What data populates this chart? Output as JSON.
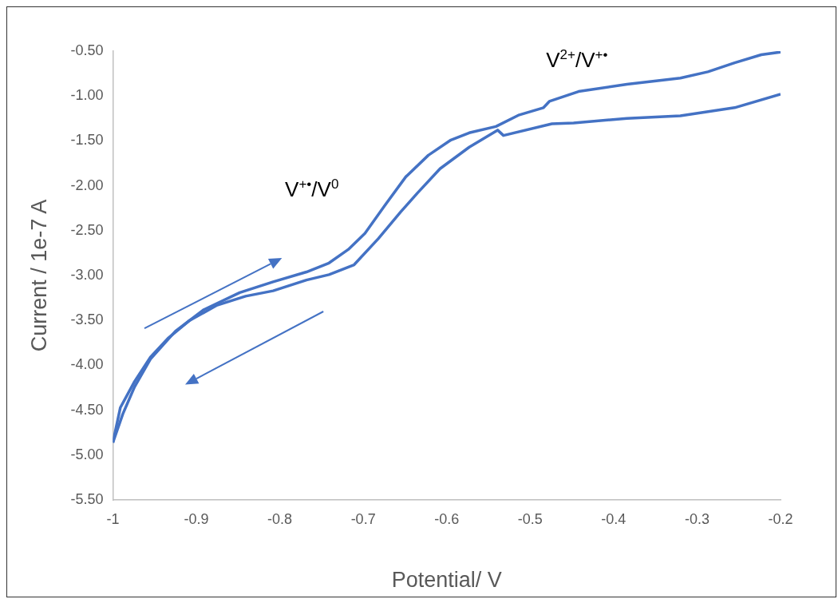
{
  "chart_data": {
    "type": "line",
    "xlabel": "Potential/ V",
    "ylabel": "Current / 1e-7 A",
    "series": [
      {
        "color": "#4472c4",
        "x": [
          -1.0,
          -0.988,
          -0.974,
          -0.955,
          -0.925,
          -0.891,
          -0.848,
          -0.808,
          -0.768,
          -0.741,
          -0.718,
          -0.698,
          -0.675,
          -0.649,
          -0.622,
          -0.595,
          -0.573,
          -0.541,
          -0.513,
          -0.484,
          -0.477,
          -0.442,
          -0.384,
          -0.32,
          -0.287,
          -0.255,
          -0.223,
          -0.2
        ],
        "values": [
          -4.86,
          -4.54,
          -4.24,
          -3.93,
          -3.62,
          -3.38,
          -3.19,
          -3.07,
          -2.96,
          -2.86,
          -2.71,
          -2.53,
          -2.23,
          -1.9,
          -1.66,
          -1.49,
          -1.41,
          -1.34,
          -1.21,
          -1.13,
          -1.06,
          -0.95,
          -0.87,
          -0.8,
          -0.73,
          -0.63,
          -0.54,
          -0.51
        ]
      },
      {
        "color": "#4472c4",
        "x": [
          -0.2,
          -0.255,
          -0.32,
          -0.384,
          -0.448,
          -0.474,
          -0.532,
          -0.539,
          -0.573,
          -0.608,
          -0.635,
          -0.655,
          -0.682,
          -0.711,
          -0.741,
          -0.768,
          -0.808,
          -0.841,
          -0.875,
          -0.908,
          -0.934,
          -0.955,
          -0.974,
          -0.991,
          -1.0
        ],
        "values": [
          -0.98,
          -1.13,
          -1.22,
          -1.25,
          -1.3,
          -1.31,
          -1.44,
          -1.38,
          -1.57,
          -1.81,
          -2.08,
          -2.29,
          -2.59,
          -2.88,
          -2.99,
          -3.05,
          -3.17,
          -3.23,
          -3.33,
          -3.5,
          -3.7,
          -3.91,
          -4.18,
          -4.47,
          -4.86
        ]
      }
    ],
    "xlim": [
      -1,
      -0.2
    ],
    "xticks": [
      -1,
      -0.9,
      -0.8,
      -0.7,
      -0.6,
      -0.5,
      -0.4,
      -0.3,
      -0.2
    ],
    "ylim": [
      -5.5,
      -0.5
    ],
    "yticks": [
      {
        "value": -5.5,
        "label": "-5.50"
      },
      {
        "value": -5,
        "label": "-5.00"
      },
      {
        "value": -4.5,
        "label": "-4.50"
      },
      {
        "value": -4,
        "label": "-4.00"
      },
      {
        "value": -3.5,
        "label": "-3.50"
      },
      {
        "value": -3,
        "label": "-3.00"
      },
      {
        "value": -2.5,
        "label": "-2.50"
      },
      {
        "value": -2,
        "label": "-2.00"
      },
      {
        "value": -1.5,
        "label": "-1.50"
      },
      {
        "value": -1,
        "label": "-1.00"
      },
      {
        "value": -0.5,
        "label": "-0.50"
      }
    ],
    "marker": "none",
    "annotations": [
      "V$^{+•}$/V$^{0}$",
      "V$^{2+}$/V$^{+•}$"
    ]
  }
}
